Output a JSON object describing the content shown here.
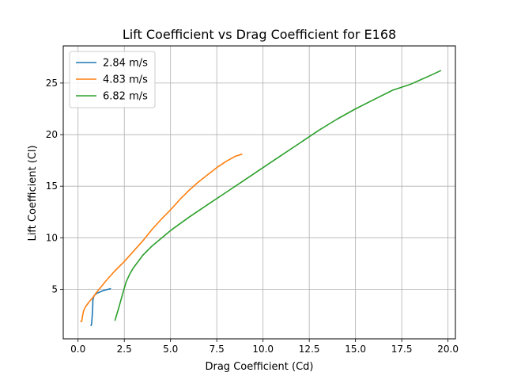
{
  "chart_data": {
    "type": "line",
    "title": "Lift Coefficient vs Drag Coefficient for E168",
    "xlabel": "Drag Coefficient (Cd)",
    "ylabel": "Lift Coefficient (Cl)",
    "xlim": [
      -0.8,
      20.4
    ],
    "ylim": [
      0.2,
      28.6
    ],
    "xticks": [
      0.0,
      2.5,
      5.0,
      7.5,
      10.0,
      12.5,
      15.0,
      17.5,
      20.0
    ],
    "xtick_labels": [
      "0.0",
      "2.5",
      "5.0",
      "7.5",
      "10.0",
      "12.5",
      "15.0",
      "17.5",
      "20.0"
    ],
    "yticks": [
      5,
      10,
      15,
      20,
      25
    ],
    "ytick_labels": [
      "5",
      "10",
      "15",
      "20",
      "25"
    ],
    "grid": true,
    "legend_position": "top-left",
    "series": [
      {
        "name": "2.84 m/s",
        "color": "#1f77b4",
        "x": [
          0.7,
          0.72,
          0.74,
          0.75,
          0.77,
          0.78,
          0.8,
          0.8,
          0.82,
          0.85,
          0.9,
          1.0,
          1.2,
          1.4,
          1.6,
          1.75
        ],
        "y": [
          1.5,
          1.55,
          1.8,
          2.1,
          2.5,
          3.0,
          3.5,
          3.9,
          4.1,
          4.3,
          4.45,
          4.6,
          4.75,
          4.9,
          5.0,
          5.05
        ]
      },
      {
        "name": "4.83 m/s",
        "color": "#ff7f0e",
        "x": [
          0.15,
          0.2,
          0.25,
          0.3,
          0.4,
          0.6,
          0.8,
          1.0,
          1.5,
          2.0,
          2.5,
          3.0,
          3.5,
          4.0,
          4.5,
          5.0,
          5.5,
          6.0,
          6.5,
          7.0,
          7.5,
          8.0,
          8.5,
          8.85
        ],
        "y": [
          1.9,
          1.9,
          2.5,
          2.9,
          3.3,
          3.8,
          4.2,
          4.7,
          5.8,
          6.8,
          7.7,
          8.7,
          9.7,
          10.8,
          11.8,
          12.7,
          13.7,
          14.6,
          15.4,
          16.1,
          16.8,
          17.4,
          17.9,
          18.1
        ]
      },
      {
        "name": "6.82 m/s",
        "color": "#2ca02c",
        "x": [
          2.0,
          2.2,
          2.4,
          2.6,
          2.8,
          3.0,
          3.5,
          4.0,
          5.0,
          6.0,
          7.0,
          8.0,
          9.0,
          10.0,
          11.0,
          12.0,
          13.0,
          14.0,
          15.0,
          16.0,
          17.0,
          17.5,
          18.0,
          18.5,
          19.0,
          19.6
        ],
        "y": [
          2.0,
          3.2,
          4.5,
          5.7,
          6.5,
          7.1,
          8.3,
          9.2,
          10.7,
          12.0,
          13.2,
          14.4,
          15.6,
          16.8,
          18.0,
          19.2,
          20.4,
          21.5,
          22.5,
          23.4,
          24.3,
          24.6,
          24.9,
          25.3,
          25.7,
          26.2
        ]
      }
    ]
  }
}
